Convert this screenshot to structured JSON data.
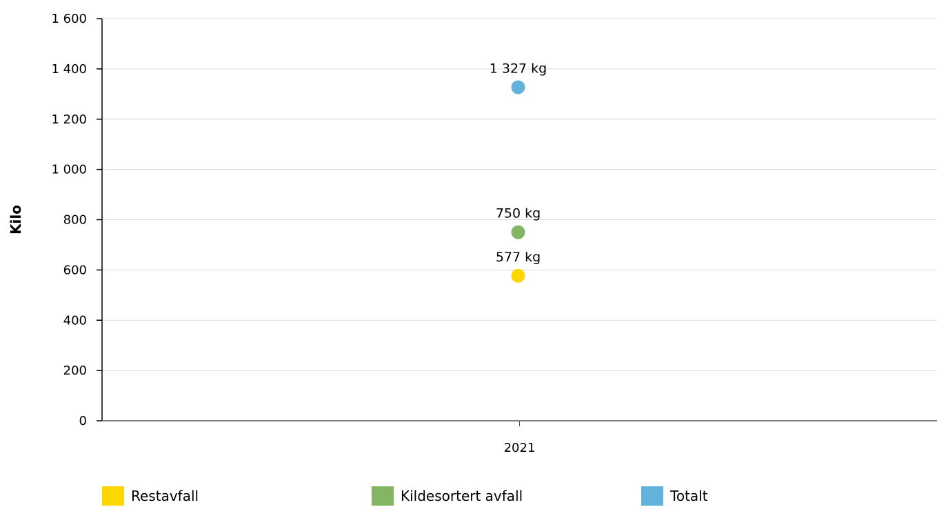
{
  "chart_data": {
    "type": "scatter",
    "ylabel": "Kilo",
    "xlabel": "",
    "categories": [
      "2021"
    ],
    "ylim": [
      0,
      1600
    ],
    "yticks": [
      "0",
      "200",
      "400",
      "600",
      "800",
      "1 000",
      "1 200",
      "1 400",
      "1 600"
    ],
    "grid": true,
    "legend_position": "bottom",
    "series": [
      {
        "name": "Restavfall",
        "values": [
          577
        ],
        "label": "577 kg",
        "color": "#FFD700"
      },
      {
        "name": "Kildesortert avfall",
        "values": [
          750
        ],
        "label": "750 kg",
        "color": "#82B662"
      },
      {
        "name": "Totalt",
        "values": [
          1327
        ],
        "label": "1 327 kg",
        "color": "#63B2DA"
      }
    ]
  }
}
